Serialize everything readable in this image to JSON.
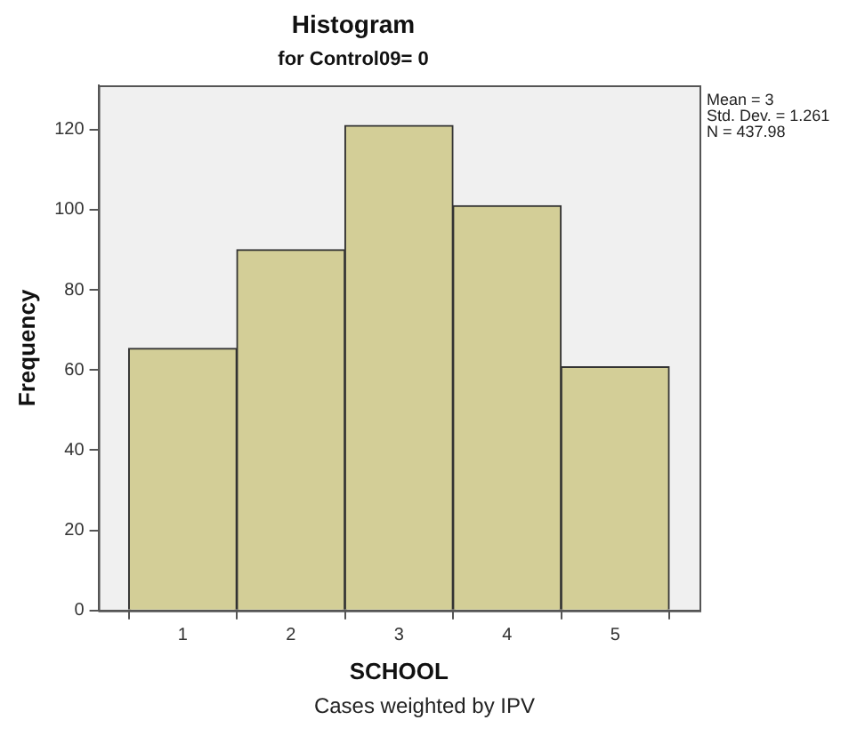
{
  "chart_data": {
    "type": "histogram",
    "title": "Histogram",
    "subtitle": "for Control09= 0",
    "xlabel": "SCHOOL",
    "ylabel": "Frequency",
    "bins": [
      0.5,
      1.5,
      2.5,
      3.5,
      4.5,
      5.5
    ],
    "values": [
      65.4,
      90,
      121,
      101,
      60.8
    ],
    "color": "#d3ce97",
    "xlim": [
      0.22,
      5.78
    ],
    "xticks": [
      1,
      2,
      3,
      4,
      5
    ],
    "ylim": [
      0,
      131
    ],
    "yticks": [
      0,
      20,
      40,
      60,
      80,
      100,
      120
    ],
    "grid": false,
    "legend": false,
    "annotations": [
      "Mean = 3\nStd. Dev. = 1.261\nN = 437.98",
      "Cases weighted by IPV"
    ]
  }
}
